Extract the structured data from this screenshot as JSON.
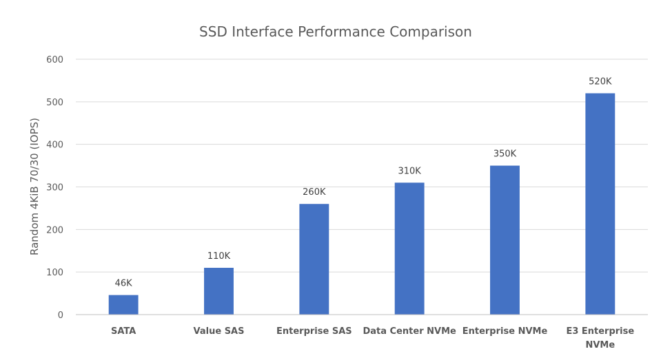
{
  "chart_data": {
    "type": "bar",
    "title": "SSD Interface Performance Comparison",
    "xlabel": "",
    "ylabel": "Random 4KiB 70/30 (IOPS)",
    "ylim": [
      0,
      600
    ],
    "yticks": [
      0,
      100,
      200,
      300,
      400,
      500,
      600
    ],
    "ytick_labels": [
      "0",
      "100",
      "200",
      "300",
      "400",
      "500",
      "600"
    ],
    "grid": true,
    "categories": [
      [
        "SATA"
      ],
      [
        "Value SAS"
      ],
      [
        "Enterprise SAS"
      ],
      [
        "Data Center NVMe"
      ],
      [
        "Enterprise NVMe"
      ],
      [
        "E3 Enterprise",
        "NVMe"
      ]
    ],
    "values": [
      46,
      110,
      260,
      310,
      350,
      520
    ],
    "data_labels": [
      "46K",
      "110K",
      "260K",
      "310K",
      "350K",
      "520K"
    ],
    "bar_color": "#4472c4"
  }
}
